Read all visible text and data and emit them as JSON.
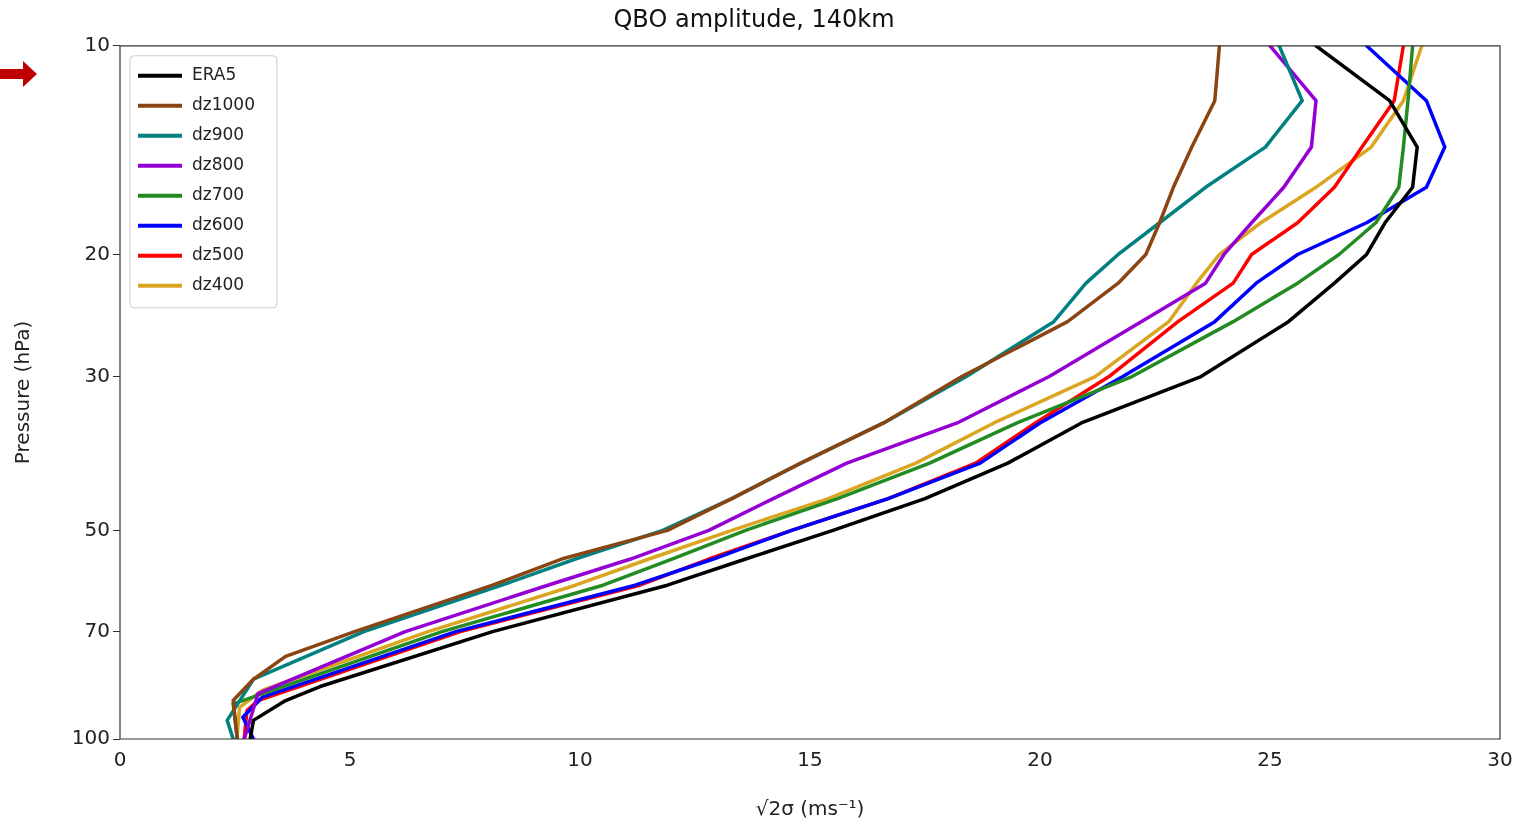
{
  "chart_data": {
    "type": "line",
    "title": "QBO amplitude, 140km",
    "xlabel": "√2σ (ms⁻¹)",
    "ylabel": "Pressure (hPa)",
    "xlim": [
      0,
      30
    ],
    "xticks": [
      0,
      5,
      10,
      15,
      20,
      25,
      30
    ],
    "ylim": [
      100,
      10
    ],
    "yticks": [
      10,
      20,
      30,
      50,
      70,
      100
    ],
    "log": "y",
    "grid": false,
    "legend": "top left",
    "series": [
      {
        "name": "ERA5",
        "color": "#000000",
        "x": [
          26.0,
          27.6,
          28.2,
          28.1,
          27.5,
          27.1,
          26.4,
          25.4,
          23.5,
          20.9,
          19.3,
          17.5,
          15.5,
          13.6,
          11.9,
          8.1,
          4.35,
          3.6,
          2.9,
          2.83
        ],
        "values": [
          10,
          12,
          14,
          16,
          18,
          20,
          22,
          25,
          30,
          35,
          40,
          45,
          50,
          55,
          60,
          70,
          84,
          88,
          94,
          100
        ]
      },
      {
        "name": "dz1000",
        "color": "#8b4513",
        "x": [
          23.9,
          23.8,
          23.3,
          22.9,
          22.6,
          22.3,
          21.7,
          20.6,
          18.3,
          16.6,
          14.8,
          13.3,
          11.9,
          9.6,
          8.1,
          5.1,
          3.6,
          2.9,
          2.46,
          2.55
        ],
        "values": [
          10,
          12,
          14,
          16,
          18,
          20,
          22,
          25,
          30,
          35,
          40,
          45,
          50,
          55,
          60,
          70,
          76,
          82,
          88,
          100
        ]
      },
      {
        "name": "dz900",
        "color": "#008080",
        "x": [
          25.2,
          25.7,
          24.9,
          23.6,
          22.6,
          21.7,
          21.0,
          20.3,
          18.4,
          16.6,
          14.8,
          13.3,
          11.8,
          9.9,
          8.3,
          5.3,
          2.9,
          2.33,
          2.46
        ],
        "values": [
          10,
          12,
          14,
          16,
          18,
          20,
          22,
          25,
          30,
          35,
          40,
          45,
          50,
          55,
          60,
          70,
          82,
          94,
          100
        ]
      },
      {
        "name": "dz800",
        "color": "#9400d3",
        "x": [
          25.0,
          26.0,
          25.9,
          25.3,
          24.6,
          24.0,
          23.6,
          22.2,
          20.2,
          18.2,
          15.8,
          14.2,
          12.8,
          11.1,
          9.3,
          6.2,
          3.0,
          2.7
        ],
        "values": [
          10,
          12,
          14,
          16,
          18,
          20,
          22,
          25,
          30,
          35,
          40,
          45,
          50,
          55,
          60,
          70,
          86,
          100
        ]
      },
      {
        "name": "dz700",
        "color": "#228b22",
        "x": [
          28.1,
          28.0,
          27.9,
          27.8,
          27.3,
          26.5,
          25.6,
          24.2,
          22.0,
          19.5,
          17.6,
          15.6,
          13.6,
          12.0,
          10.5,
          7.0,
          2.46,
          2.55
        ],
        "values": [
          10,
          12,
          14,
          16,
          18,
          20,
          22,
          25,
          30,
          35,
          40,
          45,
          50,
          55,
          60,
          70,
          89,
          100
        ]
      },
      {
        "name": "dz600",
        "color": "#0000ff",
        "x": [
          27.1,
          28.4,
          28.8,
          28.4,
          27.1,
          25.6,
          24.7,
          23.8,
          21.8,
          20.0,
          18.7,
          16.7,
          14.6,
          12.9,
          11.2,
          7.3,
          3.1,
          2.67,
          2.9
        ],
        "values": [
          10,
          12,
          14,
          16,
          18,
          20,
          22,
          25,
          30,
          35,
          40,
          45,
          50,
          55,
          60,
          70,
          87,
          93,
          100
        ]
      },
      {
        "name": "dz500",
        "color": "#ff0000",
        "x": [
          27.9,
          27.7,
          27.0,
          26.4,
          25.6,
          24.6,
          24.2,
          23.0,
          21.5,
          19.9,
          18.6,
          16.7,
          14.6,
          12.8,
          11.3,
          7.4,
          3.0,
          2.76,
          2.7
        ],
        "values": [
          10,
          12,
          14,
          16,
          18,
          20,
          22,
          25,
          30,
          35,
          40,
          45,
          50,
          55,
          60,
          70,
          88,
          91,
          100
        ]
      },
      {
        "name": "dz400",
        "color": "#daa520",
        "x": [
          28.3,
          27.9,
          27.2,
          26.0,
          24.8,
          23.9,
          23.4,
          22.8,
          21.2,
          19.0,
          17.3,
          15.4,
          13.3,
          11.5,
          9.9,
          6.7,
          3.1,
          2.6,
          2.54
        ],
        "values": [
          10,
          12,
          14,
          16,
          18,
          20,
          22,
          25,
          30,
          35,
          40,
          45,
          50,
          55,
          60,
          70,
          85,
          90,
          100
        ]
      }
    ]
  }
}
